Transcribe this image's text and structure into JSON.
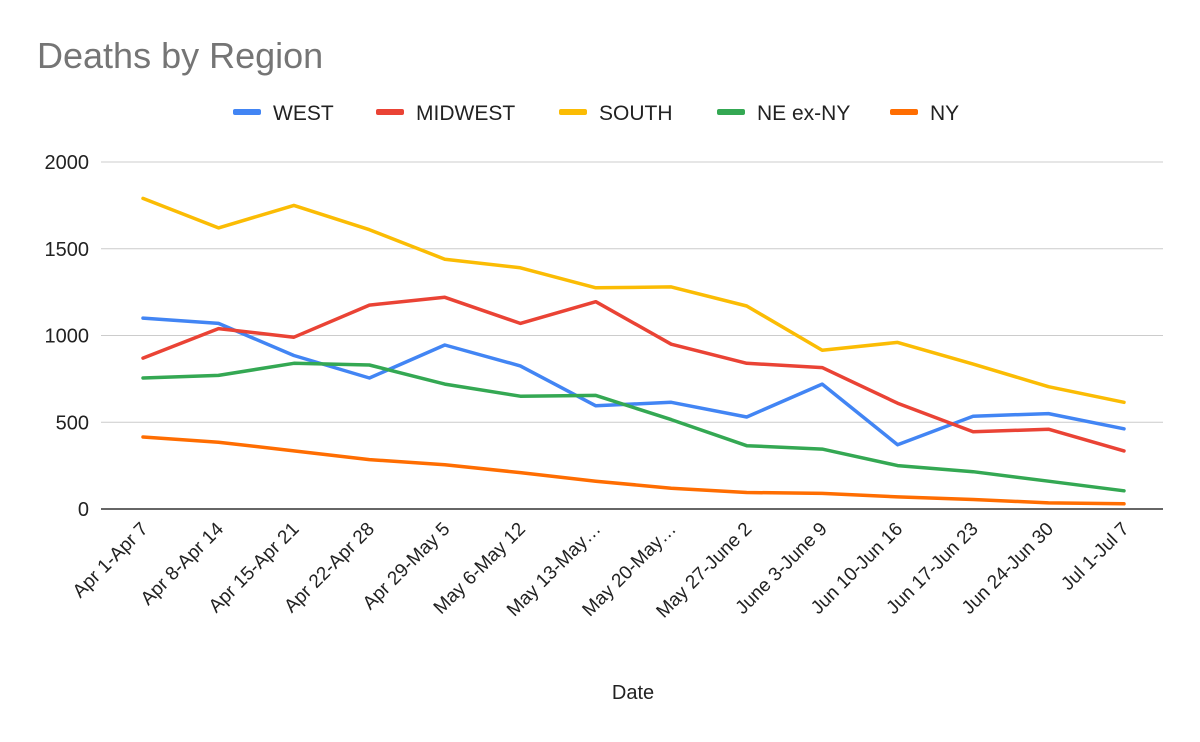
{
  "chart_data": {
    "type": "line",
    "title": "Deaths by Region",
    "xlabel": "Date",
    "ylabel": "",
    "ylim": [
      0,
      2000
    ],
    "yticks": [
      0,
      500,
      1000,
      1500,
      2000
    ],
    "grid": true,
    "legend_position": "top",
    "categories": [
      "Apr 1-Apr 7",
      "Apr 8-Apr 14",
      "Apr 15-Apr 21",
      "Apr 22-Apr 28",
      "Apr 29-May 5",
      "May 6-May 12",
      "May 13-May…",
      "May 20-May…",
      "May 27-June 2",
      "June 3-June 9",
      "Jun 10-Jun 16",
      "Jun 17-Jun 23",
      "Jun 24-Jun 30",
      "Jul 1-Jul 7"
    ],
    "series": [
      {
        "name": "WEST",
        "color": "#4285f4",
        "values": [
          1100,
          1070,
          885,
          755,
          945,
          825,
          595,
          615,
          530,
          720,
          370,
          535,
          550,
          462
        ]
      },
      {
        "name": "MIDWEST",
        "color": "#ea4335",
        "values": [
          870,
          1040,
          990,
          1175,
          1220,
          1070,
          1195,
          950,
          840,
          815,
          610,
          445,
          460,
          335
        ]
      },
      {
        "name": "SOUTH",
        "color": "#fbbc04",
        "values": [
          1790,
          1620,
          1750,
          1610,
          1440,
          1390,
          1275,
          1280,
          1170,
          915,
          960,
          835,
          705,
          615
        ]
      },
      {
        "name": "NE ex-NY",
        "color": "#34a853",
        "values": [
          755,
          770,
          840,
          830,
          720,
          650,
          655,
          515,
          365,
          345,
          250,
          215,
          160,
          105
        ]
      },
      {
        "name": "NY",
        "color": "#ff6d01",
        "values": [
          415,
          385,
          335,
          285,
          255,
          210,
          160,
          120,
          95,
          90,
          70,
          55,
          35,
          30
        ]
      }
    ]
  }
}
